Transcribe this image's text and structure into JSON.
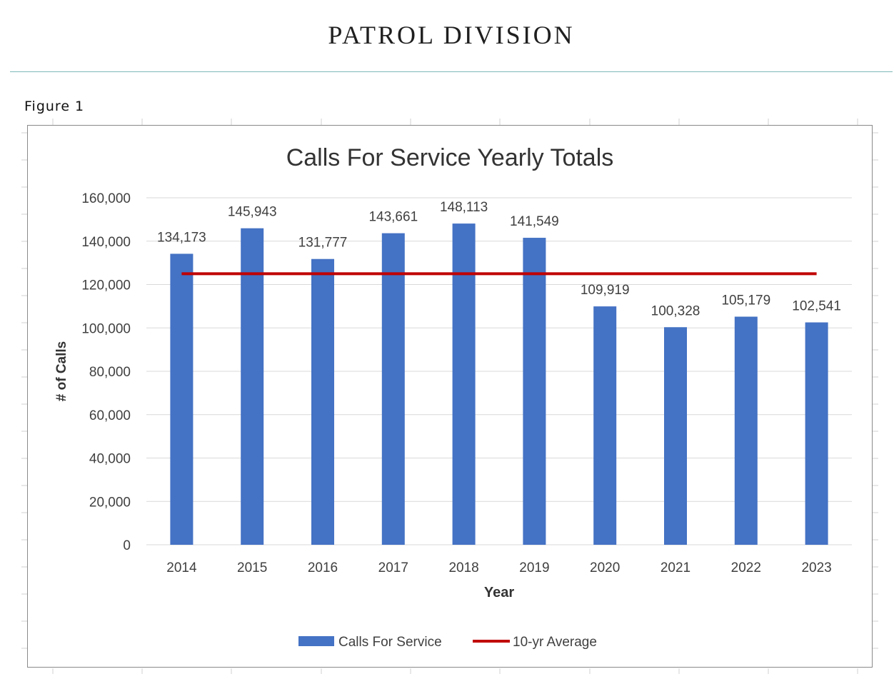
{
  "page": {
    "header": "PATROL DIVISION",
    "figure_label": "Figure 1"
  },
  "colors": {
    "bar": "#4472c4",
    "average_line": "#c00000",
    "gridline": "#d9d9d9",
    "header_rule": "#7fb8b8",
    "text": "#404040"
  },
  "chart_data": {
    "type": "bar",
    "title": "Calls For Service Yearly Totals",
    "xlabel": "Year",
    "ylabel": "# of Calls",
    "categories": [
      "2014",
      "2015",
      "2016",
      "2017",
      "2018",
      "2019",
      "2020",
      "2021",
      "2022",
      "2023"
    ],
    "series": [
      {
        "name": "Calls For Service",
        "type": "bar",
        "values": [
          134173,
          145943,
          131777,
          143661,
          148113,
          141549,
          109919,
          100328,
          105179,
          102541
        ],
        "data_labels": [
          "134,173",
          "145,943",
          "131,777",
          "143,661",
          "148,113",
          "141,549",
          "109,919",
          "100,328",
          "105,179",
          "102,541"
        ]
      },
      {
        "name": "10-yr Average",
        "type": "line",
        "values": [
          125000,
          125000,
          125000,
          125000,
          125000,
          125000,
          125000,
          125000,
          125000,
          125000
        ]
      }
    ],
    "ylim": [
      0,
      160000
    ],
    "yticks": [
      0,
      20000,
      40000,
      60000,
      80000,
      100000,
      120000,
      140000,
      160000
    ],
    "ytick_labels": [
      "0",
      "20,000",
      "40,000",
      "60,000",
      "80,000",
      "100,000",
      "120,000",
      "140,000",
      "160,000"
    ],
    "grid": true,
    "legend": "bottom"
  }
}
